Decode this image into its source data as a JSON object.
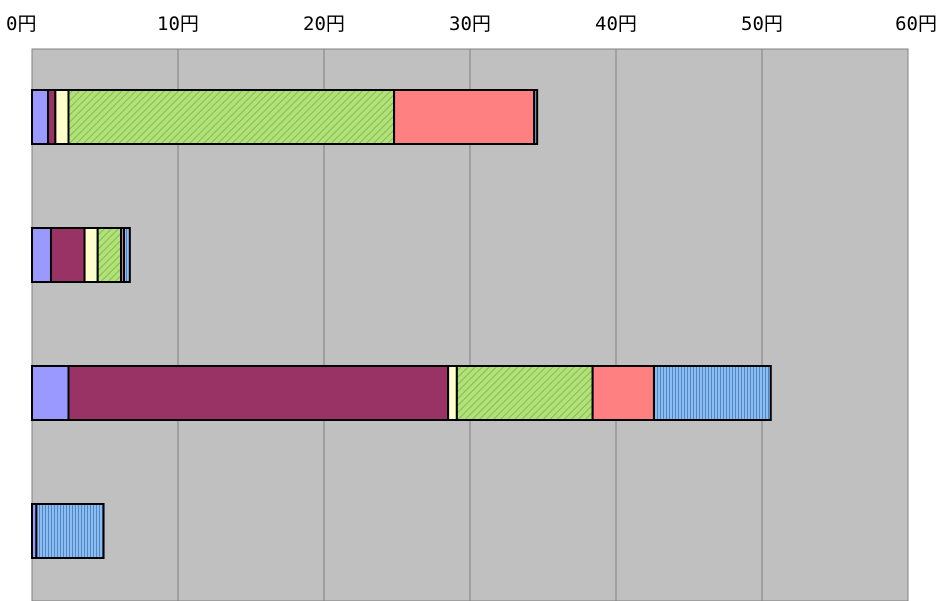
{
  "chart_data": {
    "type": "bar",
    "orientation": "horizontal",
    "stacked": true,
    "x_unit_suffix": "円",
    "xlim": [
      0,
      60
    ],
    "x_ticks": [
      0,
      10,
      20,
      30,
      40,
      50,
      60
    ],
    "x_tick_labels": [
      "0円",
      "10円",
      "20円",
      "30円",
      "40円",
      "50円",
      "60円"
    ],
    "x_axis_position": "top",
    "grid": true,
    "legend": "none",
    "plot_background": "#c0c0c0",
    "categories": [
      "",
      "",
      "",
      ""
    ],
    "series": [
      {
        "color": "#9999ff",
        "pattern": "solid",
        "values": [
          1.1,
          1.3,
          2.5,
          0.3
        ]
      },
      {
        "color": "#993366",
        "pattern": "solid",
        "values": [
          0.5,
          2.3,
          26.0,
          0.0
        ]
      },
      {
        "color": "#ffffcc",
        "pattern": "solid",
        "values": [
          0.9,
          0.9,
          0.6,
          0.0
        ]
      },
      {
        "color": "#99dd66",
        "pattern": "diagonal",
        "values": [
          22.3,
          1.6,
          9.3,
          0.0
        ]
      },
      {
        "color": "#ff8080",
        "pattern": "solid",
        "values": [
          9.6,
          0.2,
          4.2,
          0.0
        ]
      },
      {
        "color": "#80b3ee",
        "pattern": "vertical",
        "values": [
          0.2,
          0.4,
          8.0,
          4.6
        ]
      }
    ]
  }
}
